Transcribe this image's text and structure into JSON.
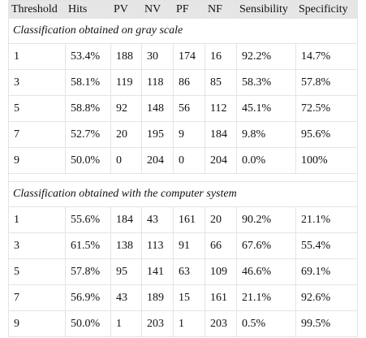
{
  "table": {
    "headers": [
      "Threshold",
      "Hits",
      "PV",
      "NV",
      "PF",
      "NF",
      "Sensibility",
      "Specificity"
    ],
    "sections": [
      {
        "title": "Classification obtained on gray scale",
        "rows": [
          [
            "1",
            "53.4%",
            "188",
            "30",
            "174",
            "16",
            "92.2%",
            "14.7%"
          ],
          [
            "3",
            "58.1%",
            "119",
            "118",
            "86",
            "85",
            "58.3%",
            "57.8%"
          ],
          [
            "5",
            "58.8%",
            "92",
            "148",
            "56",
            "112",
            "45.1%",
            "72.5%"
          ],
          [
            "7",
            "52.7%",
            "20",
            "195",
            "9",
            "184",
            "9.8%",
            "95.6%"
          ],
          [
            "9",
            "50.0%",
            "0",
            "204",
            "0",
            "204",
            "0.0%",
            "100%"
          ]
        ]
      },
      {
        "title": "Classification obtained with the computer system",
        "rows": [
          [
            "1",
            "55.6%",
            "184",
            "43",
            "161",
            "20",
            "90.2%",
            "21.1%"
          ],
          [
            "3",
            "61.5%",
            "138",
            "113",
            "91",
            "66",
            "67.6%",
            "55.4%"
          ],
          [
            "5",
            "57.8%",
            "95",
            "141",
            "63",
            "109",
            "46.6%",
            "69.1%"
          ],
          [
            "7",
            "56.9%",
            "43",
            "189",
            "15",
            "161",
            "21.1%",
            "92.6%"
          ],
          [
            "9",
            "50.0%",
            "1",
            "203",
            "1",
            "203",
            "0.5%",
            "99.5%"
          ]
        ]
      }
    ]
  }
}
